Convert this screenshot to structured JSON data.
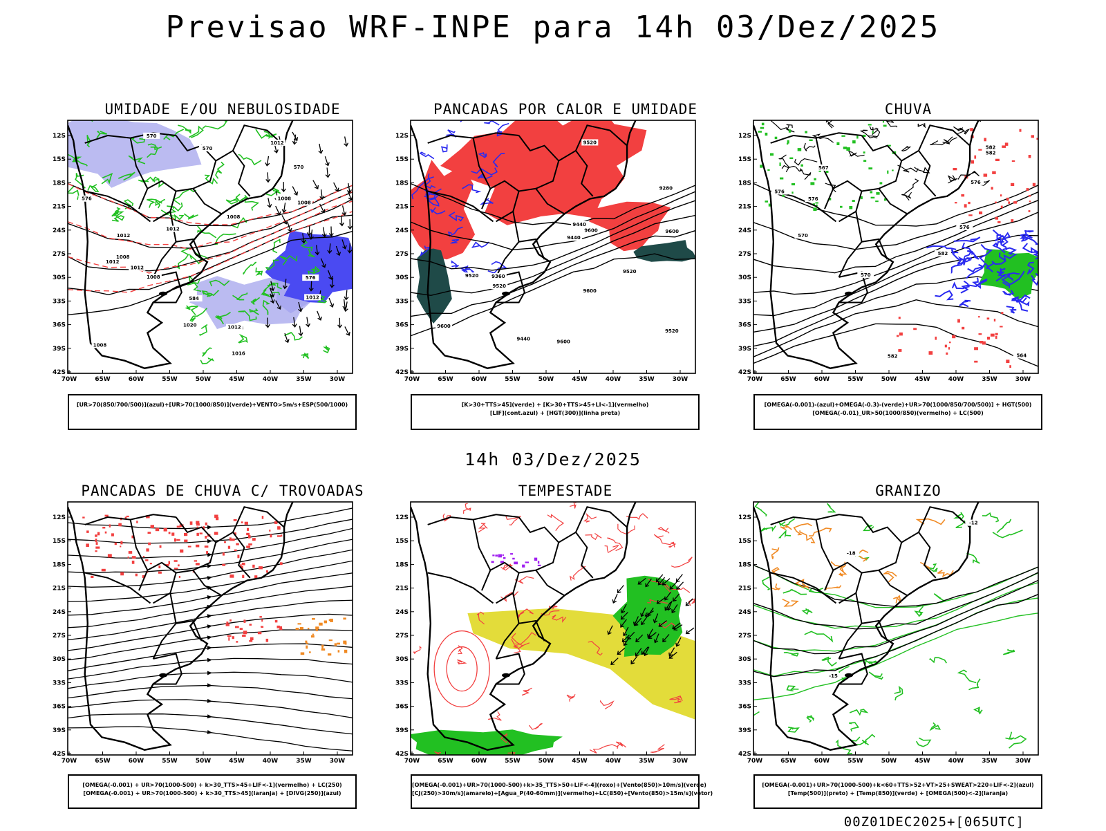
{
  "title": "Previsao WRF-INPE  para 14h 03/Dez/2025",
  "mid_title": "14h 03/Dez/2025",
  "footer": "00Z01DEC2025+[065UTC]",
  "axes": {
    "lat_labels": [
      "12S",
      "15S",
      "18S",
      "21S",
      "24S",
      "27S",
      "30S",
      "33S",
      "36S",
      "39S",
      "42S"
    ],
    "lon_labels": [
      "70W",
      "65W",
      "60W",
      "55W",
      "50W",
      "45W",
      "40W",
      "35W",
      "30W"
    ]
  },
  "colors": {
    "red": "#f24040",
    "green": "#22c022",
    "blue": "#2a2af0",
    "lavender": "#b4b4f0",
    "dark_teal": "#1f4a48",
    "yellow": "#e3dc3a",
    "orange": "#f08a24",
    "black": "#000000"
  },
  "panels": [
    {
      "title": "UMIDADE E/OU NEBULOSIDADE",
      "legend": [
        "[UR>70(850/700/500)](azul)+[UR>70(1000/850)](verde)+VENTO>5m/s+ESP(500/1000)"
      ],
      "contour_labels": [
        "1008",
        "1008",
        "1012",
        "1012",
        "1012",
        "1012",
        "1008",
        "1008",
        "1008",
        "1008",
        "1012",
        "1012",
        "1016",
        "1020",
        "1012",
        "1008",
        "570",
        "570",
        "576",
        "584",
        "570",
        "576"
      ]
    },
    {
      "title": "PANCADAS POR CALOR E UMIDADE",
      "legend": [
        "[K>30+TTS>45](verde) + [K>30+TTS>45+LI<-1](vermelho)",
        "[LIF](cont.azul) + [HGT(300)](linha preta)"
      ],
      "contour_labels": [
        "9600",
        "9600",
        "9600",
        "9600",
        "9600",
        "9520",
        "9520",
        "9520",
        "9440",
        "9520",
        "9440",
        "9360",
        "9280",
        "9440",
        "9520"
      ]
    },
    {
      "title": "CHUVA",
      "legend": [
        "[OMEGA(-0.001)-(azul)+OMEGA(-0.3)-(verde)+UR>70(1000/850/700/500)] + HGT(500)",
        "[OMEGA(-0.01)_UR>50(1000/850)(vermelho) + LC(500)"
      ],
      "contour_labels": [
        "582",
        "582",
        "582",
        "576",
        "576",
        "570",
        "567",
        "564",
        "576",
        "570",
        "582",
        "576"
      ]
    },
    {
      "title": "PANCADAS DE CHUVA C/ TROVOADAS",
      "legend": [
        "[OMEGA(-0.001) + UR>70(1000-500) + k>30_TTS>45+LIF<-1](vermelho) + LC(250)",
        "[OMEGA(-0.001) + UR>70(1000-500) + k>30_TTS>45](laranja) + [DIVG(250)](azul)"
      ],
      "contour_labels": []
    },
    {
      "title": "TEMPESTADE",
      "legend": [
        "[OMEGA(-0.001)+UR>70(1000-500)+k>35_TTS>50+LIF<-4](roxo)+[Vento(850)>10m/s](verde)",
        "[CJ(250)>30m/s](amarelo)+[Agua_P(40-60mm)](vermelho)+LC(850)+[Vento(850)>15m/s](vetor)"
      ],
      "contour_labels": []
    },
    {
      "title": "GRANIZO",
      "legend": [
        "[OMEGA(-0.001)+UR>70(1000-500)+k<60+TTS>52+VT>25+SWEAT>220+LIF<-2](azul)",
        "[Temp(500)](preto) + [Temp(850)](verde) + [OMEGA(500)<-2](laranja)"
      ],
      "contour_labels": [
        "-12",
        "-15",
        "-18"
      ]
    }
  ]
}
